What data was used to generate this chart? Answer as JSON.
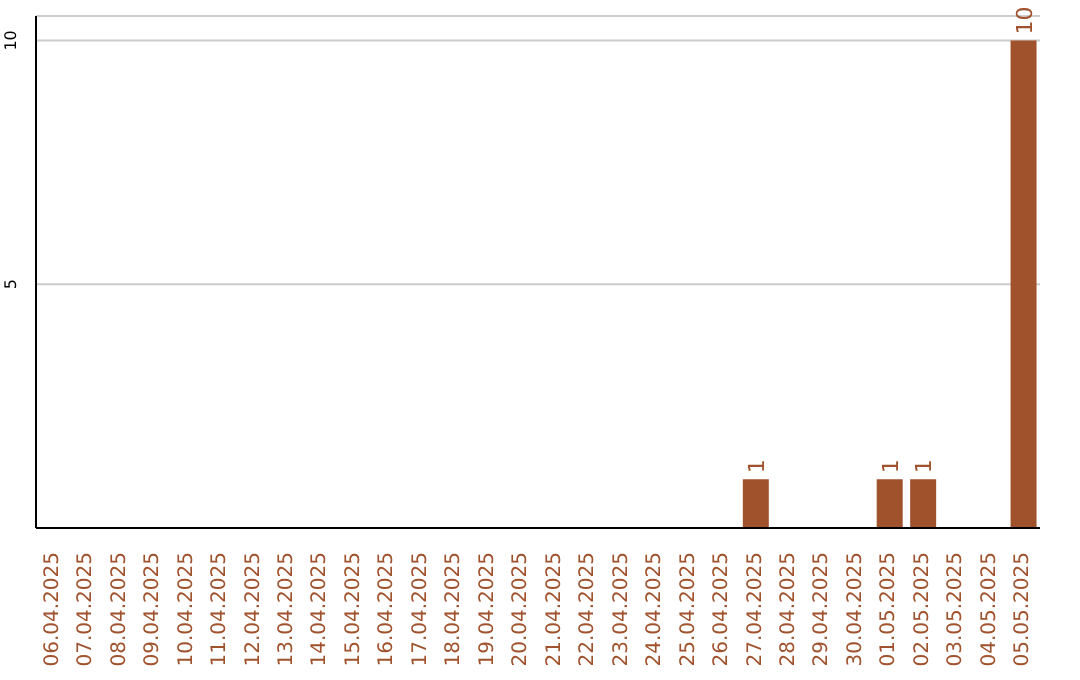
{
  "chart_data": {
    "type": "bar",
    "categories": [
      "06.04.2025",
      "07.04.2025",
      "08.04.2025",
      "09.04.2025",
      "10.04.2025",
      "11.04.2025",
      "12.04.2025",
      "13.04.2025",
      "14.04.2025",
      "15.04.2025",
      "16.04.2025",
      "17.04.2025",
      "18.04.2025",
      "19.04.2025",
      "20.04.2025",
      "21.04.2025",
      "22.04.2025",
      "23.04.2025",
      "24.04.2025",
      "25.04.2025",
      "26.04.2025",
      "27.04.2025",
      "28.04.2025",
      "29.04.2025",
      "30.04.2025",
      "01.05.2025",
      "02.05.2025",
      "03.05.2025",
      "04.05.2025",
      "05.05.2025"
    ],
    "values": [
      0,
      0,
      0,
      0,
      0,
      0,
      0,
      0,
      0,
      0,
      0,
      0,
      0,
      0,
      0,
      0,
      0,
      0,
      0,
      0,
      0,
      1,
      0,
      0,
      0,
      1,
      1,
      0,
      0,
      10
    ],
    "value_labels": [
      null,
      null,
      null,
      null,
      null,
      null,
      null,
      null,
      null,
      null,
      null,
      null,
      null,
      null,
      null,
      null,
      null,
      null,
      null,
      null,
      null,
      "1",
      null,
      null,
      null,
      "1",
      "1",
      null,
      null,
      "10"
    ],
    "color": "#a0522d",
    "ylim": [
      0,
      10.5
    ],
    "yticks": [
      5,
      10
    ],
    "grid": "y"
  }
}
